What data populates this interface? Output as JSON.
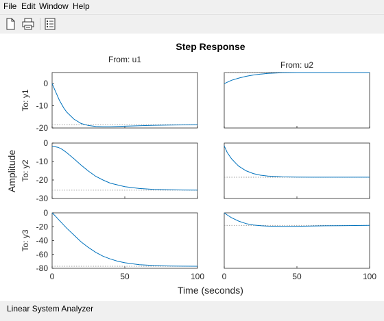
{
  "menu": [
    "File",
    "Edit",
    "Window",
    "Help"
  ],
  "toolbar": {
    "new_icon": "new-document-icon",
    "print_icon": "printer-icon",
    "legend_icon": "property-list-icon"
  },
  "colors": {
    "line": "#0072bd",
    "steady_state": "#808080",
    "axes": "#262626"
  },
  "status": "Linear System Analyzer",
  "chart_data": {
    "type": "line",
    "title": "Step Response",
    "xlabel": "Time (seconds)",
    "ylabel": "Amplitude",
    "columns": [
      "From: u1",
      "From: u2"
    ],
    "rows": [
      "To: y1",
      "To: y2",
      "To: y3"
    ],
    "xlim": [
      0,
      100
    ],
    "xticks": [
      0,
      50,
      100
    ],
    "grid": false,
    "subplots": [
      {
        "row": 0,
        "col": 0,
        "ylim": [
          -20,
          5
        ],
        "yticks": [
          0,
          -10,
          -20
        ],
        "steady_state": -18.5,
        "x": [
          0,
          2,
          5,
          8,
          10,
          15,
          20,
          25,
          30,
          35,
          40,
          45,
          50,
          60,
          70,
          80,
          90,
          100
        ],
        "y": [
          0,
          -3,
          -7.5,
          -11,
          -12.8,
          -16,
          -18,
          -18.9,
          -19.3,
          -19.4,
          -19.4,
          -19.3,
          -19.2,
          -19,
          -18.8,
          -18.7,
          -18.6,
          -18.5
        ]
      },
      {
        "row": 0,
        "col": 1,
        "ylim": [
          -25,
          0
        ],
        "yticks": [],
        "steady_state": 0,
        "x": [
          0,
          5,
          10,
          15,
          20,
          25,
          30,
          40,
          50,
          60,
          70,
          80,
          90,
          100
        ],
        "y": [
          -5,
          -3.5,
          -2.5,
          -1.7,
          -1.1,
          -0.7,
          -0.4,
          -0.1,
          0,
          0,
          0,
          0,
          0,
          0
        ]
      },
      {
        "row": 1,
        "col": 0,
        "ylim": [
          -30,
          0
        ],
        "yticks": [
          0,
          -10,
          -20,
          -30
        ],
        "steady_state": -25.5,
        "x": [
          0,
          2,
          4,
          6,
          8,
          10,
          15,
          20,
          25,
          30,
          35,
          40,
          50,
          60,
          70,
          80,
          90,
          100
        ],
        "y": [
          -1.8,
          -2,
          -2.3,
          -3,
          -4,
          -5.2,
          -8.5,
          -12,
          -15.2,
          -18,
          -20,
          -21.7,
          -23.6,
          -24.6,
          -25.1,
          -25.3,
          -25.4,
          -25.5
        ]
      },
      {
        "row": 1,
        "col": 1,
        "ylim": [
          -30,
          0
        ],
        "yticks": [],
        "steady_state": -18.5,
        "x": [
          0,
          2,
          5,
          8,
          10,
          15,
          20,
          25,
          30,
          40,
          50,
          60,
          70,
          80,
          90,
          100
        ],
        "y": [
          -1.5,
          -5,
          -8.5,
          -11,
          -12.5,
          -15,
          -16.5,
          -17.4,
          -17.9,
          -18.3,
          -18.4,
          -18.5,
          -18.5,
          -18.5,
          -18.5,
          -18.5
        ]
      },
      {
        "row": 2,
        "col": 0,
        "ylim": [
          -80,
          0
        ],
        "yticks": [
          0,
          -20,
          -40,
          -60,
          -80
        ],
        "steady_state": -77,
        "x": [
          0,
          2,
          5,
          10,
          15,
          20,
          25,
          30,
          35,
          40,
          45,
          50,
          60,
          70,
          80,
          90,
          100
        ],
        "y": [
          0,
          -4,
          -11,
          -22,
          -32,
          -42,
          -50,
          -57,
          -62.5,
          -66.5,
          -69.7,
          -72,
          -74.8,
          -76,
          -76.6,
          -76.9,
          -77
        ]
      },
      {
        "row": 2,
        "col": 1,
        "ylim": [
          -80,
          0
        ],
        "yticks": [],
        "steady_state": -18,
        "x": [
          0,
          2,
          5,
          10,
          15,
          20,
          25,
          30,
          40,
          50,
          60,
          70,
          80,
          90,
          100
        ],
        "y": [
          0,
          -3,
          -7,
          -12,
          -15.5,
          -17.5,
          -18.6,
          -19.2,
          -19.6,
          -19.4,
          -19,
          -18.7,
          -18.5,
          -18.3,
          -18
        ]
      }
    ]
  }
}
